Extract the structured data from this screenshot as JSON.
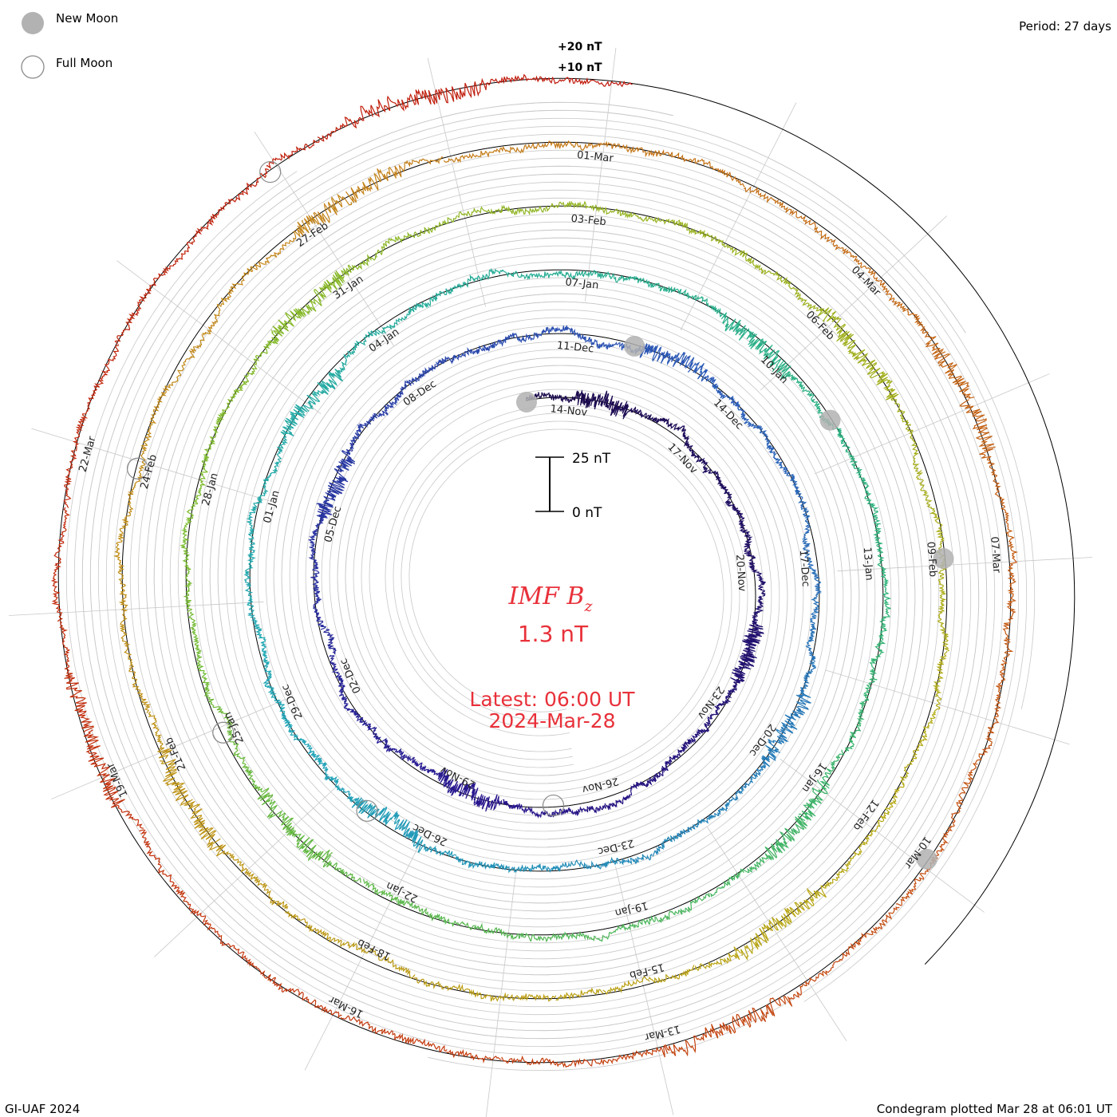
{
  "legend": {
    "new_moon": "New Moon",
    "full_moon": "Full Moon",
    "new_moon_color": "#b2b2b2",
    "full_moon_color": "#8a8a8a"
  },
  "period_text": "Period: 27 days",
  "footer": {
    "left": "GI-UAF 2024",
    "right": "Condegram plotted Mar 28 at 06:01 UT"
  },
  "chart_data": {
    "type": "condegram",
    "title": "IMF B",
    "title_subscript": "z",
    "current_value": "1.3 nT",
    "latest_label": "Latest: 06:00 UT",
    "latest_date": "2024-Mar-28",
    "period_days": 27,
    "scale_bar": {
      "top": "25 nT",
      "bottom": "0 nT"
    },
    "outer_scale_labels": [
      "+20 nT",
      "+10 nT"
    ],
    "date_start": "2023-11-13",
    "date_end": "2024-03-28",
    "label_every_days": 3,
    "rotations": [
      {
        "start": "2023-11-13",
        "color": "#1b0a4a",
        "amplitude": 6
      },
      {
        "start": "2023-12-10",
        "color": "#2c1a94",
        "amplitude": 9
      },
      {
        "start": "2024-01-06",
        "color": "#2c56b6",
        "amplitude": 8
      },
      {
        "start": "2024-02-02",
        "color": "#27ae9a",
        "amplitude": 8
      },
      {
        "start": "2024-02-29",
        "color": "#7cbb2c",
        "amplitude": 9
      },
      {
        "start": "2024-03-27",
        "color": "#b49c14",
        "amplitude": 8
      }
    ],
    "color_stops": [
      "#1b0a4a",
      "#28168e",
      "#2b5cb8",
      "#20a6b8",
      "#2bb27a",
      "#7cbb2c",
      "#b7a914",
      "#c4841a",
      "#c4400e",
      "#c0180c"
    ],
    "date_labels": [
      "14-Nov",
      "17-Nov",
      "20-Nov",
      "23-Nov",
      "26-Nov",
      "29-Nov",
      "02-Dec",
      "05-Dec",
      "08-Dec",
      "11-Dec",
      "14-Dec",
      "17-Dec",
      "20-Dec",
      "23-Dec",
      "26-Dec",
      "29-Dec",
      "01-Jan",
      "04-Jan",
      "07-Jan",
      "10-Jan",
      "13-Jan",
      "16-Jan",
      "19-Jan",
      "22-Jan",
      "25-Jan",
      "28-Jan",
      "31-Jan",
      "03-Feb",
      "06-Feb",
      "09-Feb",
      "12-Feb",
      "15-Feb",
      "18-Feb",
      "21-Feb",
      "24-Feb",
      "27-Feb",
      "01-Mar",
      "04-Mar",
      "07-Mar",
      "10-Mar",
      "13-Mar",
      "16-Mar",
      "19-Mar",
      "22-Mar"
    ],
    "new_moons": [
      "2023-11-13",
      "2023-12-12",
      "2024-01-11",
      "2024-02-09",
      "2024-03-10"
    ],
    "full_moons": [
      "2023-11-27",
      "2023-12-27",
      "2024-01-25",
      "2024-02-24",
      "2024-03-25"
    ]
  }
}
